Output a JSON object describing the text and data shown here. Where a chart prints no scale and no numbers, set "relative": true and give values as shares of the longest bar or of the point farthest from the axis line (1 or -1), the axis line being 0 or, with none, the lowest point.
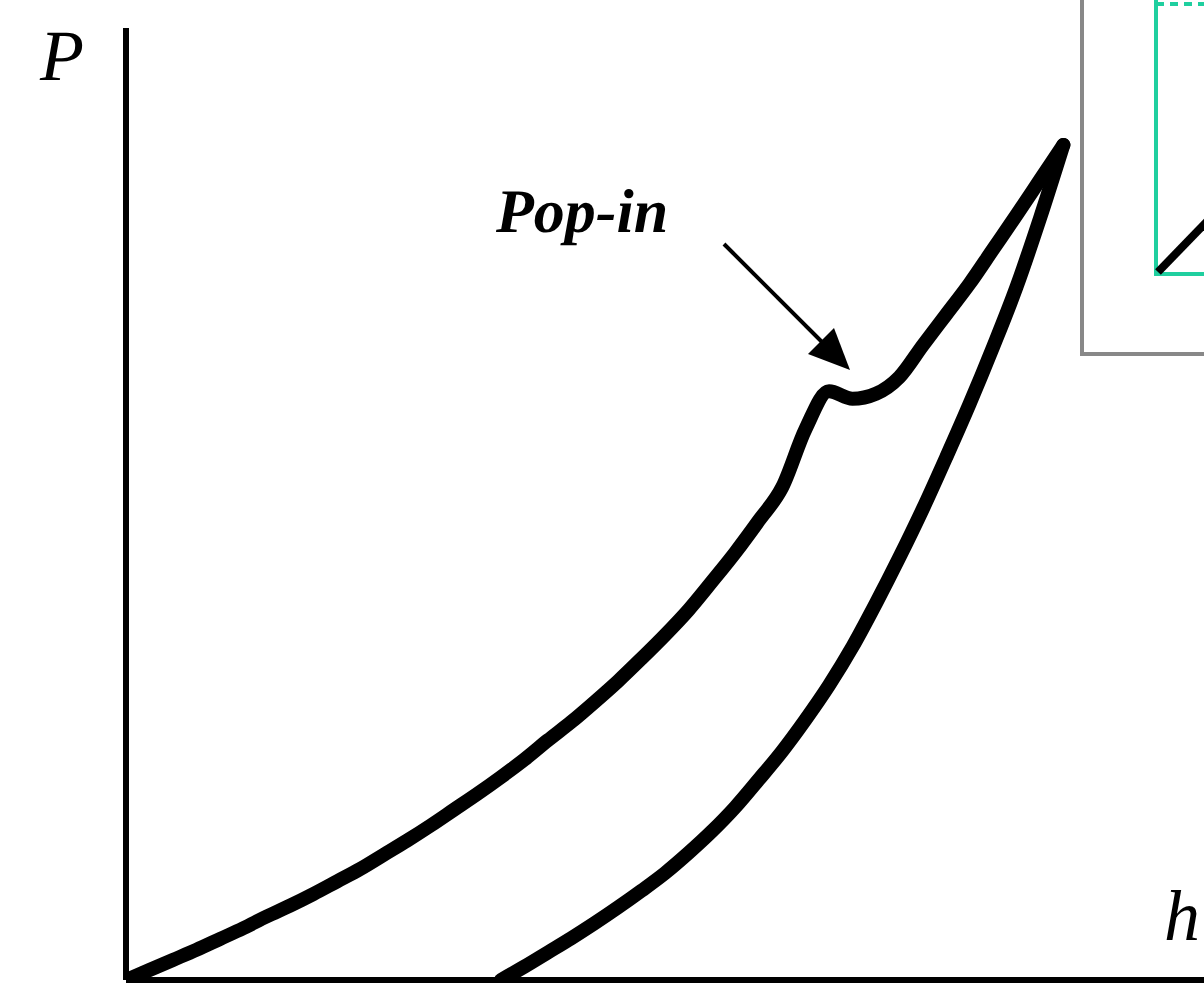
{
  "chart_data": {
    "type": "line",
    "relative": true,
    "xlabel": "h",
    "ylabel": "P",
    "marker": "none",
    "line_style": "solid",
    "annotations": [
      "Pop-in"
    ],
    "categories": [
      null,
      null,
      null,
      null,
      null,
      null,
      null,
      null,
      null,
      null,
      null,
      null,
      null,
      null,
      null,
      null,
      null,
      null,
      null,
      null,
      null,
      null,
      null,
      null,
      null,
      null,
      null,
      null,
      null,
      null,
      null,
      null,
      null,
      null,
      null,
      null,
      null,
      null,
      null,
      null,
      null,
      null,
      null,
      null,
      null,
      null,
      null
    ],
    "series": [
      {
        "color": "#000000",
        "values": [
          0,
          0.012,
          0.024,
          0.036,
          0.049,
          0.062,
          0.076,
          0.089,
          0.103,
          0.118,
          0.133,
          0.15,
          0.167,
          0.185,
          0.204,
          0.223,
          0.243,
          0.264,
          0.287,
          0.309,
          0.333,
          0.358,
          0.385,
          0.413,
          0.443,
          0.477,
          0.512,
          0.55,
          0.59,
          0.66,
          0.705,
          0.696,
          0.702,
          0.722,
          0.76,
          0.797,
          0.834,
          0.875,
          0.916,
          0.958,
          1.0,
          null,
          null,
          null,
          null,
          null,
          null
        ]
      },
      {
        "color": "#000000",
        "values": [
          null,
          null,
          null,
          null,
          null,
          null,
          null,
          null,
          null,
          null,
          null,
          null,
          null,
          null,
          null,
          null,
          0,
          0.016,
          0.033,
          0.05,
          0.068,
          0.087,
          0.107,
          0.128,
          0.152,
          0.178,
          0.207,
          0.24,
          0.274,
          0.312,
          0.353,
          0.399,
          0.451,
          0.506,
          0.564,
          0.626,
          0.69,
          0.758,
          0.83,
          0.912,
          1.0,
          null,
          null,
          null,
          null,
          null,
          null
        ]
      }
    ]
  }
}
